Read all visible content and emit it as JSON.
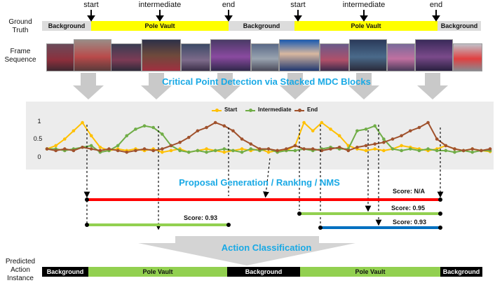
{
  "labels": {
    "ground_truth": "Ground Truth",
    "frame_sequence": "Frame Sequence",
    "predicted": "Predicted Action Instance"
  },
  "markers": [
    "start",
    "intermediate",
    "end",
    "start",
    "intermediate",
    "end"
  ],
  "ground_truth_segments": [
    {
      "label": "Background",
      "type": "bg"
    },
    {
      "label": "Pole Vault",
      "type": "pv"
    },
    {
      "label": "Background",
      "type": "bg"
    },
    {
      "label": "Pole Vault",
      "type": "pv"
    },
    {
      "label": "Background",
      "type": "bg"
    }
  ],
  "titles": {
    "detection": "Critical Point Detection via Stacked MDC Blocks",
    "proposal": "Proposal Generation / Ranking / NMS",
    "classification": "Action Classification"
  },
  "chart_data": {
    "type": "line",
    "ylim": [
      0,
      1
    ],
    "yticks": [
      "1",
      "0.5",
      "0"
    ],
    "legend_position": "top",
    "series": [
      {
        "name": "Start",
        "color": "#ffc000",
        "values": [
          0.2,
          0.3,
          0.5,
          0.75,
          1.0,
          0.6,
          0.25,
          0.15,
          0.2,
          0.15,
          0.2,
          0.15,
          0.2,
          0.1,
          0.15,
          0.2,
          0.1,
          0.15,
          0.2,
          0.15,
          0.1,
          0.15,
          0.2,
          0.15,
          0.2,
          0.1,
          0.15,
          0.15,
          0.3,
          1.0,
          0.75,
          1.0,
          0.8,
          0.6,
          0.3,
          0.2,
          0.15,
          0.2,
          0.15,
          0.2,
          0.3,
          0.25,
          0.2,
          0.15,
          0.2,
          0.3,
          0.2,
          0.15,
          0.2,
          0.15,
          0.12
        ]
      },
      {
        "name": "Intermediate",
        "color": "#70ad47",
        "values": [
          0.2,
          0.2,
          0.15,
          0.2,
          0.25,
          0.3,
          0.1,
          0.15,
          0.3,
          0.6,
          0.8,
          0.9,
          0.85,
          0.65,
          0.3,
          0.15,
          0.1,
          0.15,
          0.1,
          0.15,
          0.2,
          0.15,
          0.1,
          0.2,
          0.15,
          0.2,
          0.1,
          0.15,
          0.15,
          0.2,
          0.15,
          0.2,
          0.25,
          0.2,
          0.2,
          0.75,
          0.8,
          0.9,
          0.5,
          0.2,
          0.15,
          0.2,
          0.15,
          0.2,
          0.15,
          0.15,
          0.1,
          0.15,
          0.1,
          0.15,
          0.15
        ]
      },
      {
        "name": "End",
        "color": "#a0522d",
        "values": [
          0.2,
          0.15,
          0.2,
          0.15,
          0.25,
          0.2,
          0.15,
          0.2,
          0.15,
          0.1,
          0.15,
          0.2,
          0.15,
          0.2,
          0.3,
          0.4,
          0.55,
          0.75,
          0.85,
          1.0,
          0.9,
          0.75,
          0.5,
          0.35,
          0.2,
          0.2,
          0.15,
          0.2,
          0.3,
          0.2,
          0.2,
          0.15,
          0.2,
          0.25,
          0.15,
          0.25,
          0.3,
          0.35,
          0.4,
          0.5,
          0.6,
          0.75,
          0.85,
          1.0,
          0.5,
          0.3,
          0.2,
          0.15,
          0.2,
          0.15,
          0.2
        ]
      }
    ]
  },
  "proposals": [
    {
      "score": "Score: N/A",
      "color": "#ff0000"
    },
    {
      "score": "Score: 0.95",
      "color": "#92d050"
    },
    {
      "score": "Score: 0.93",
      "color": "#0070c0"
    },
    {
      "score": "Score: 0.93",
      "color": "#92d050"
    }
  ],
  "predicted_segments": [
    {
      "label": "Background",
      "type": "bg"
    },
    {
      "label": "Pole Vault",
      "type": "pv"
    },
    {
      "label": "Background",
      "type": "bg"
    },
    {
      "label": "Pole Vault",
      "type": "pv"
    },
    {
      "label": "Background",
      "type": "bg"
    }
  ]
}
